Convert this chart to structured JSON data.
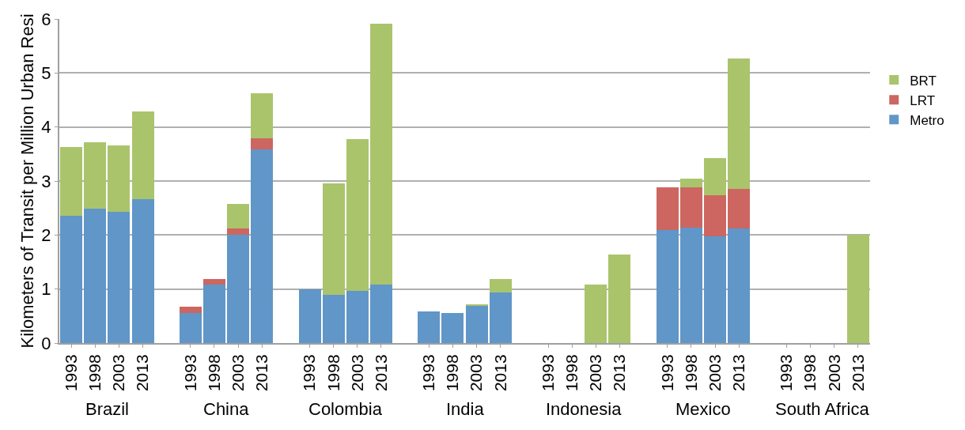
{
  "chart_data": {
    "type": "bar",
    "stacked": true,
    "ylabel": "Kilometers of Transit per Million Urban Resi",
    "categories": [
      "1993",
      "1998",
      "2003",
      "2013",
      null,
      "1993",
      "1998",
      "2003",
      "2013",
      null,
      "1993",
      "1998",
      "2003",
      "2013",
      null,
      "1993",
      "1998",
      "2003",
      "2013",
      null,
      "1993",
      "1998",
      "2003",
      "2013",
      null,
      "1993",
      "1998",
      "2003",
      "2013",
      null,
      "1993",
      "1998",
      "2003",
      "2013"
    ],
    "series": [
      {
        "name": "Metro",
        "color": "#6096c8",
        "values": [
          2.36,
          2.49,
          2.43,
          2.67,
          null,
          0.56,
          1.08,
          2.0,
          3.59,
          null,
          1.0,
          0.9,
          0.96,
          1.08,
          null,
          0.58,
          0.56,
          0.69,
          0.94,
          null,
          null,
          null,
          null,
          null,
          null,
          2.09,
          2.14,
          1.98,
          2.12,
          null,
          null,
          null,
          null,
          null
        ]
      },
      {
        "name": "LRT",
        "color": "#cd6660",
        "values": [
          null,
          null,
          null,
          null,
          null,
          0.12,
          0.11,
          0.12,
          0.2,
          null,
          null,
          null,
          null,
          null,
          null,
          null,
          null,
          null,
          null,
          null,
          null,
          null,
          null,
          null,
          null,
          0.8,
          0.75,
          0.76,
          0.73,
          null,
          null,
          null,
          null,
          null
        ]
      },
      {
        "name": "BRT",
        "color": "#aac46c",
        "values": [
          1.27,
          1.23,
          1.23,
          1.62,
          null,
          null,
          null,
          0.46,
          0.83,
          null,
          null,
          2.05,
          2.82,
          4.83,
          null,
          null,
          null,
          0.03,
          0.24,
          null,
          null,
          null,
          1.08,
          1.64,
          null,
          null,
          0.15,
          0.68,
          2.42,
          null,
          null,
          null,
          null,
          2.0
        ]
      }
    ],
    "annotations": [
      "Brazil",
      "China",
      "Colombia",
      "India",
      "Indonesia",
      "Mexico",
      "South Africa"
    ],
    "ylim": [
      0,
      6
    ],
    "yticks": [
      0,
      1,
      2,
      3,
      4,
      5,
      6
    ],
    "grid": "y",
    "legend": "right"
  }
}
